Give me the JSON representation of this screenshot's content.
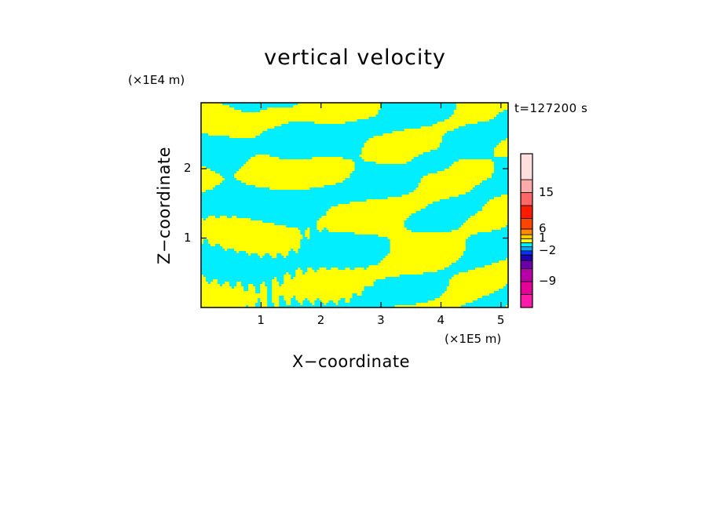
{
  "chart_data": {
    "type": "heatmap",
    "title": "vertical velocity",
    "xlabel": "X−coordinate",
    "ylabel": "Z−coordinate",
    "x_unit": "(×1E5 m)",
    "y_unit": "(×1E4 m)",
    "timestamp": "t=127200 s",
    "xlim": [
      0,
      5.12
    ],
    "ylim": [
      0,
      2.95
    ],
    "x_ticks": [
      1,
      2,
      3,
      4,
      5
    ],
    "y_ticks": [
      1,
      2
    ],
    "colors": {
      "positive": "#ffff00",
      "negative": "#00eeff"
    },
    "colorbar": {
      "levels": [
        {
          "color": "#ff1aa8"
        },
        {
          "color": "#e40096"
        },
        {
          "color": "#b800a8"
        },
        {
          "color": "#6a00aa"
        },
        {
          "color": "#2000b0"
        },
        {
          "color": "#0033ff"
        },
        {
          "color": "#00aaff"
        },
        {
          "color": "#00eeff"
        },
        {
          "color": "#ffff00"
        },
        {
          "color": "#ffcc00"
        },
        {
          "color": "#ff8800"
        },
        {
          "color": "#ff4400"
        },
        {
          "color": "#ff1a00"
        },
        {
          "color": "#ff6666"
        },
        {
          "color": "#ffaaaa"
        },
        {
          "color": "#ffdede"
        }
      ],
      "tick_labels": [
        "−9",
        "−2",
        "1",
        "6",
        "15"
      ]
    }
  }
}
